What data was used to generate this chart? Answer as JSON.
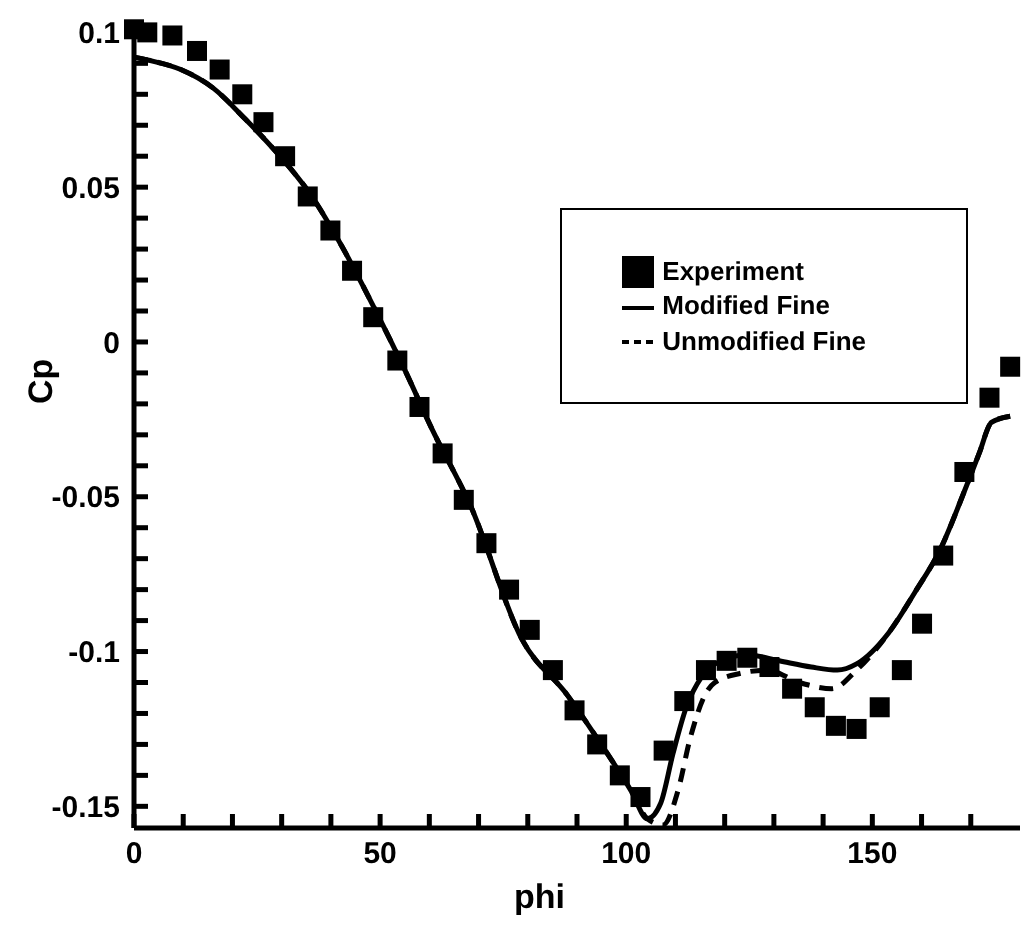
{
  "chart_data": {
    "type": "line",
    "xlabel": "phi",
    "ylabel": "Cp",
    "xlim": [
      0,
      180
    ],
    "ylim": [
      -0.157,
      0.104
    ],
    "xticks": [
      0,
      {
        "value": 10,
        "label": null
      },
      {
        "value": 20,
        "label": null
      },
      {
        "value": 30,
        "label": null
      },
      {
        "value": 40,
        "label": null
      },
      50,
      {
        "value": 60,
        "label": null
      },
      {
        "value": 70,
        "label": null
      },
      {
        "value": 80,
        "label": null
      },
      {
        "value": 90,
        "label": null
      },
      100,
      {
        "value": 110,
        "label": null
      },
      {
        "value": 120,
        "label": null
      },
      {
        "value": 130,
        "label": null
      },
      {
        "value": 140,
        "label": null
      },
      150,
      {
        "value": 160,
        "label": null
      },
      {
        "value": 170,
        "label": null
      }
    ],
    "yticks": [
      -0.15,
      {
        "value": -0.14,
        "label": null
      },
      {
        "value": -0.13,
        "label": null
      },
      {
        "value": -0.12,
        "label": null
      },
      {
        "value": -0.11,
        "label": null
      },
      -0.1,
      {
        "value": -0.09,
        "label": null
      },
      {
        "value": -0.08,
        "label": null
      },
      {
        "value": -0.07,
        "label": null
      },
      {
        "value": -0.06,
        "label": null
      },
      -0.05,
      {
        "value": -0.04,
        "label": null
      },
      {
        "value": -0.03,
        "label": null
      },
      {
        "value": -0.02,
        "label": null
      },
      {
        "value": -0.01,
        "label": null
      },
      0,
      {
        "value": 0.01,
        "label": null
      },
      {
        "value": 0.02,
        "label": null
      },
      {
        "value": 0.03,
        "label": null
      },
      {
        "value": 0.04,
        "label": null
      },
      0.05,
      {
        "value": 0.06,
        "label": null
      },
      {
        "value": 0.07,
        "label": null
      },
      {
        "value": 0.08,
        "label": null
      },
      {
        "value": 0.09,
        "label": null
      },
      0.1
    ],
    "grid": false,
    "legend": "top right",
    "series": [
      {
        "name": "Experiment",
        "type": "scatter",
        "marker": "square",
        "color": "#000000",
        "x": [
          0,
          2.7,
          7.8,
          12.8,
          17.4,
          22,
          26.3,
          30.7,
          35.3,
          39.9,
          44.3,
          48.6,
          53.5,
          58,
          62.7,
          67,
          71.6,
          76.2,
          80.4,
          85.1,
          89.5,
          94.1,
          98.7,
          102.9,
          107.6,
          111.8,
          116.2,
          120.4,
          124.6,
          129.1,
          133.7,
          138.3,
          142.6,
          146.8,
          151.5,
          156,
          160.1,
          164.4,
          168.7,
          173.8,
          178
        ],
        "values": [
          0.101,
          0.1,
          0.099,
          0.094,
          0.088,
          0.08,
          0.071,
          0.06,
          0.047,
          0.036,
          0.023,
          0.008,
          -0.006,
          -0.021,
          -0.036,
          -0.051,
          -0.065,
          -0.08,
          -0.093,
          -0.106,
          -0.119,
          -0.13,
          -0.14,
          -0.147,
          -0.132,
          -0.116,
          -0.106,
          -0.103,
          -0.102,
          -0.105,
          -0.112,
          -0.118,
          -0.124,
          -0.125,
          -0.118,
          -0.106,
          -0.091,
          -0.069,
          -0.042,
          -0.018,
          -0.008
        ]
      },
      {
        "name": "Unmodified Fine",
        "type": "line",
        "marker": "none",
        "line_style": "dashed",
        "color": "#000000",
        "x": [
          0,
          3,
          9.5,
          16.1,
          22.6,
          29.1,
          35.7,
          42.2,
          48.8,
          55.3,
          60.5,
          68.4,
          78.8,
          88,
          94.5,
          101,
          104.3,
          107.5,
          110.5,
          113,
          116,
          118,
          123.3,
          128.6,
          135.2,
          141.8,
          146.8,
          153.3,
          158.6,
          163.8,
          169,
          171.7,
          174.2,
          178
        ],
        "values": [
          0.092,
          0.091,
          0.088,
          0.082,
          0.072,
          0.061,
          0.048,
          0.031,
          0.011,
          -0.01,
          -0.028,
          -0.053,
          -0.096,
          -0.114,
          -0.129,
          -0.145,
          -0.154,
          -0.156,
          -0.145,
          -0.128,
          -0.114,
          -0.11,
          -0.107,
          -0.106,
          -0.11,
          -0.112,
          -0.106,
          -0.094,
          -0.081,
          -0.067,
          -0.047,
          -0.036,
          -0.026,
          -0.024
        ]
      },
      {
        "name": "Modified Fine",
        "type": "line",
        "marker": "none",
        "line_style": "solid",
        "color": "#000000",
        "x": [
          0,
          3,
          9.5,
          16.1,
          22.6,
          29.1,
          35.7,
          42.2,
          48.8,
          55.3,
          60.5,
          68.4,
          78.8,
          88,
          94.5,
          101,
          104.3,
          107,
          109.5,
          112.2,
          115.4,
          119.3,
          124.6,
          131.1,
          137.6,
          142.9,
          146.8,
          153.3,
          158.6,
          163.8,
          169,
          171.7,
          174.2,
          178
        ],
        "values": [
          0.092,
          0.091,
          0.088,
          0.082,
          0.072,
          0.061,
          0.048,
          0.031,
          0.011,
          -0.01,
          -0.028,
          -0.053,
          -0.096,
          -0.114,
          -0.129,
          -0.145,
          -0.154,
          -0.149,
          -0.133,
          -0.118,
          -0.108,
          -0.103,
          -0.101,
          -0.103,
          -0.105,
          -0.106,
          -0.104,
          -0.094,
          -0.081,
          -0.067,
          -0.047,
          -0.036,
          -0.026,
          -0.024
        ]
      }
    ]
  }
}
